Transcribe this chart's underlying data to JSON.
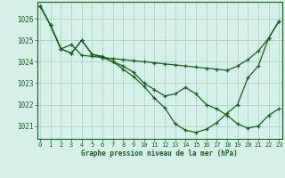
{
  "background_color": "#d5f0e8",
  "grid_color": "#b0d8c8",
  "line_color": "#1a5e1a",
  "xlabel": "Graphe pression niveau de la mer (hPa)",
  "ylim": [
    1020.4,
    1026.8
  ],
  "xlim": [
    -0.3,
    23.3
  ],
  "yticks": [
    1021,
    1022,
    1023,
    1024,
    1025,
    1026
  ],
  "xticks": [
    0,
    1,
    2,
    3,
    4,
    5,
    6,
    7,
    8,
    9,
    10,
    11,
    12,
    13,
    14,
    15,
    16,
    17,
    18,
    19,
    20,
    21,
    22,
    23
  ],
  "series": [
    [
      1026.6,
      1025.7,
      1024.6,
      1024.8,
      1024.3,
      1024.25,
      1024.2,
      1024.15,
      1024.1,
      1024.05,
      1024.0,
      1023.95,
      1023.9,
      1023.85,
      1023.8,
      1023.75,
      1023.7,
      1023.65,
      1023.6,
      1023.8,
      1024.1,
      1024.5,
      1025.1,
      1025.9
    ],
    [
      1026.6,
      1025.7,
      1024.6,
      1024.4,
      1025.0,
      1024.35,
      1024.25,
      1024.0,
      1023.8,
      1023.5,
      1023.0,
      1022.7,
      1022.4,
      1022.5,
      1022.8,
      1022.5,
      1022.0,
      1021.8,
      1021.5,
      1021.1,
      1020.9,
      1021.0,
      1021.5,
      1021.8
    ],
    [
      1026.6,
      1025.7,
      1024.6,
      1024.4,
      1025.0,
      1024.35,
      1024.2,
      1024.0,
      1023.65,
      1023.3,
      1022.85,
      1022.3,
      1021.85,
      1021.1,
      1020.8,
      1020.7,
      1020.85,
      1021.15,
      1021.6,
      1022.0,
      1023.25,
      1023.8,
      1025.1,
      1025.9
    ]
  ]
}
